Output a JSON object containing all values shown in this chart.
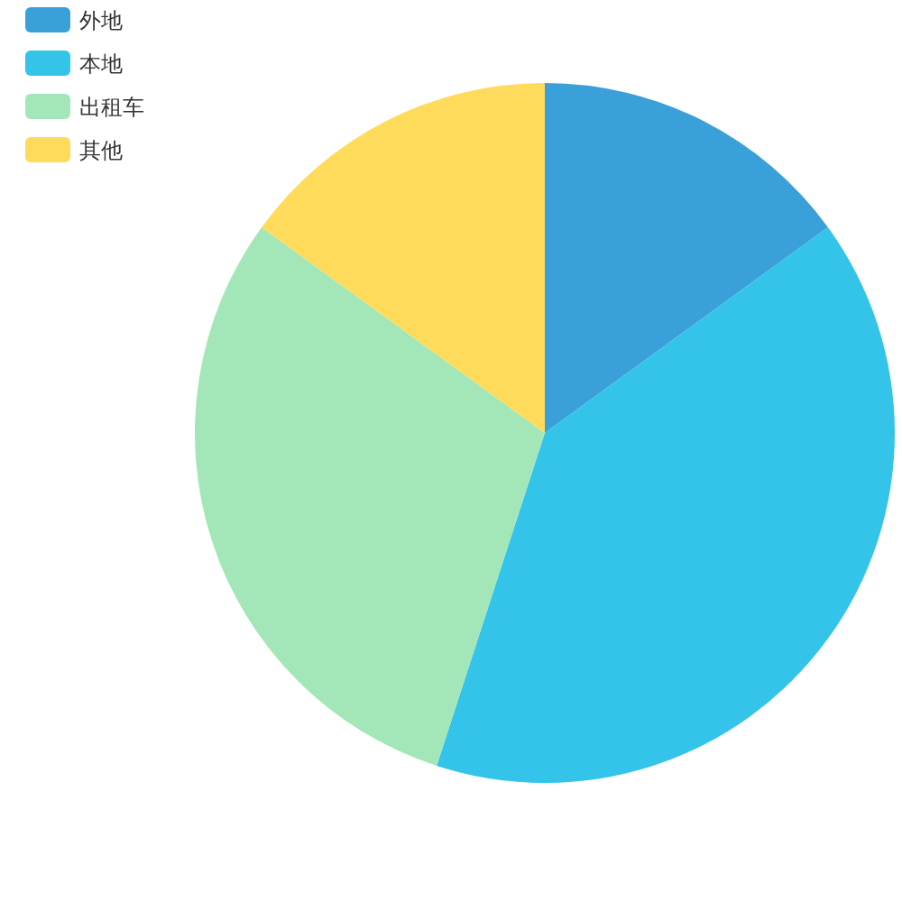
{
  "chart_data": {
    "type": "pie",
    "categories": [
      "外地",
      "本地",
      "出租车",
      "其他"
    ],
    "values": [
      15,
      40,
      30,
      15
    ],
    "colors": [
      "#3aa0d9",
      "#34c4e9",
      "#a3e7b9",
      "#ffdb5c"
    ],
    "legend": "top left"
  }
}
